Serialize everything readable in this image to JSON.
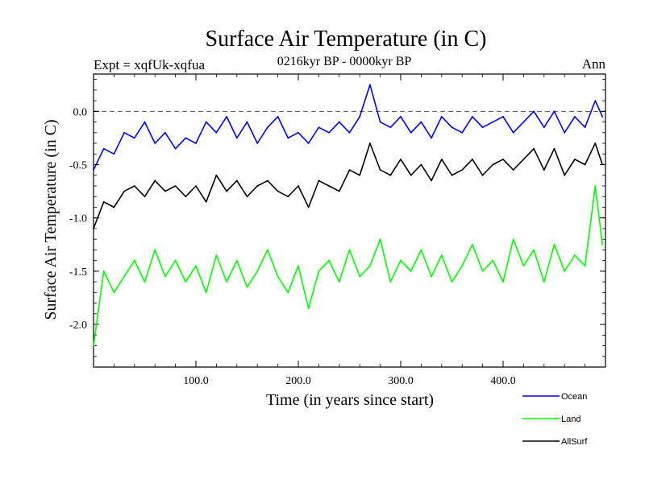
{
  "chart_data": {
    "type": "line",
    "title": "Surface Air Temperature (in C)",
    "subtitle": "0216kyr BP - 0000kyr BP",
    "left_label": "Expt = xqfUk-xqfua",
    "right_label": "Ann",
    "xlabel": "Time (in years since start)",
    "ylabel": "Surface Air Temperature (in C)",
    "xlim": [
      0,
      500
    ],
    "ylim": [
      -2.4,
      0.35
    ],
    "x_ticks": [
      100,
      200,
      300,
      400
    ],
    "x_tick_labels": [
      "100.0",
      "200.0",
      "300.0",
      "400.0"
    ],
    "y_ticks": [
      0.0,
      -0.5,
      -1.0,
      -1.5,
      -2.0
    ],
    "y_tick_labels": [
      "0.0",
      "-0.5",
      "-1.0",
      "-1.5",
      "-2.0"
    ],
    "reference_line": 0.0,
    "legend_position": "bottom-right, below plot",
    "colors": {
      "Ocean": "#0000ff",
      "Land": "#00ff00",
      "AllSurf": "#000000"
    },
    "series": [
      {
        "name": "Ocean",
        "color": "#0000ff",
        "x": [
          0,
          10,
          20,
          30,
          40,
          50,
          60,
          70,
          80,
          90,
          100,
          110,
          120,
          130,
          140,
          150,
          160,
          170,
          180,
          190,
          200,
          210,
          220,
          230,
          240,
          250,
          260,
          270,
          280,
          290,
          300,
          310,
          320,
          330,
          340,
          350,
          360,
          370,
          380,
          390,
          400,
          410,
          420,
          430,
          440,
          450,
          460,
          470,
          480,
          490,
          497
        ],
        "values": [
          -0.55,
          -0.35,
          -0.4,
          -0.2,
          -0.25,
          -0.1,
          -0.3,
          -0.2,
          -0.35,
          -0.25,
          -0.3,
          -0.1,
          -0.2,
          -0.05,
          -0.25,
          -0.1,
          -0.3,
          -0.15,
          -0.05,
          -0.25,
          -0.2,
          -0.3,
          -0.15,
          -0.2,
          -0.1,
          -0.2,
          -0.05,
          0.25,
          -0.1,
          -0.15,
          -0.05,
          -0.2,
          -0.1,
          -0.25,
          -0.05,
          -0.15,
          -0.2,
          -0.05,
          -0.15,
          -0.1,
          -0.05,
          -0.2,
          -0.1,
          0.0,
          -0.15,
          0.0,
          -0.2,
          -0.05,
          -0.15,
          0.1,
          -0.05
        ]
      },
      {
        "name": "Land",
        "color": "#00ff00",
        "x": [
          0,
          10,
          20,
          30,
          40,
          50,
          60,
          70,
          80,
          90,
          100,
          110,
          120,
          130,
          140,
          150,
          160,
          170,
          180,
          190,
          200,
          210,
          220,
          230,
          240,
          250,
          260,
          270,
          280,
          290,
          300,
          310,
          320,
          330,
          340,
          350,
          360,
          370,
          380,
          390,
          400,
          410,
          420,
          430,
          440,
          450,
          460,
          470,
          480,
          490,
          497
        ],
        "values": [
          -2.2,
          -1.5,
          -1.7,
          -1.55,
          -1.4,
          -1.6,
          -1.3,
          -1.55,
          -1.4,
          -1.6,
          -1.45,
          -1.7,
          -1.35,
          -1.6,
          -1.4,
          -1.65,
          -1.5,
          -1.3,
          -1.55,
          -1.7,
          -1.45,
          -1.85,
          -1.5,
          -1.4,
          -1.6,
          -1.3,
          -1.55,
          -1.45,
          -1.2,
          -1.6,
          -1.4,
          -1.5,
          -1.3,
          -1.55,
          -1.35,
          -1.6,
          -1.45,
          -1.25,
          -1.5,
          -1.4,
          -1.6,
          -1.2,
          -1.45,
          -1.3,
          -1.6,
          -1.25,
          -1.5,
          -1.35,
          -1.45,
          -0.7,
          -1.25
        ]
      },
      {
        "name": "AllSurf",
        "color": "#000000",
        "x": [
          0,
          10,
          20,
          30,
          40,
          50,
          60,
          70,
          80,
          90,
          100,
          110,
          120,
          130,
          140,
          150,
          160,
          170,
          180,
          190,
          200,
          210,
          220,
          230,
          240,
          250,
          260,
          270,
          280,
          290,
          300,
          310,
          320,
          330,
          340,
          350,
          360,
          370,
          380,
          390,
          400,
          410,
          420,
          430,
          440,
          450,
          460,
          470,
          480,
          490,
          497
        ],
        "values": [
          -1.1,
          -0.85,
          -0.9,
          -0.75,
          -0.7,
          -0.8,
          -0.65,
          -0.75,
          -0.7,
          -0.8,
          -0.7,
          -0.85,
          -0.6,
          -0.75,
          -0.65,
          -0.8,
          -0.7,
          -0.65,
          -0.75,
          -0.8,
          -0.7,
          -0.9,
          -0.65,
          -0.7,
          -0.75,
          -0.55,
          -0.6,
          -0.3,
          -0.55,
          -0.6,
          -0.45,
          -0.6,
          -0.5,
          -0.65,
          -0.45,
          -0.6,
          -0.55,
          -0.45,
          -0.6,
          -0.5,
          -0.45,
          -0.55,
          -0.45,
          -0.35,
          -0.55,
          -0.35,
          -0.6,
          -0.45,
          -0.5,
          -0.3,
          -0.5
        ]
      }
    ]
  }
}
